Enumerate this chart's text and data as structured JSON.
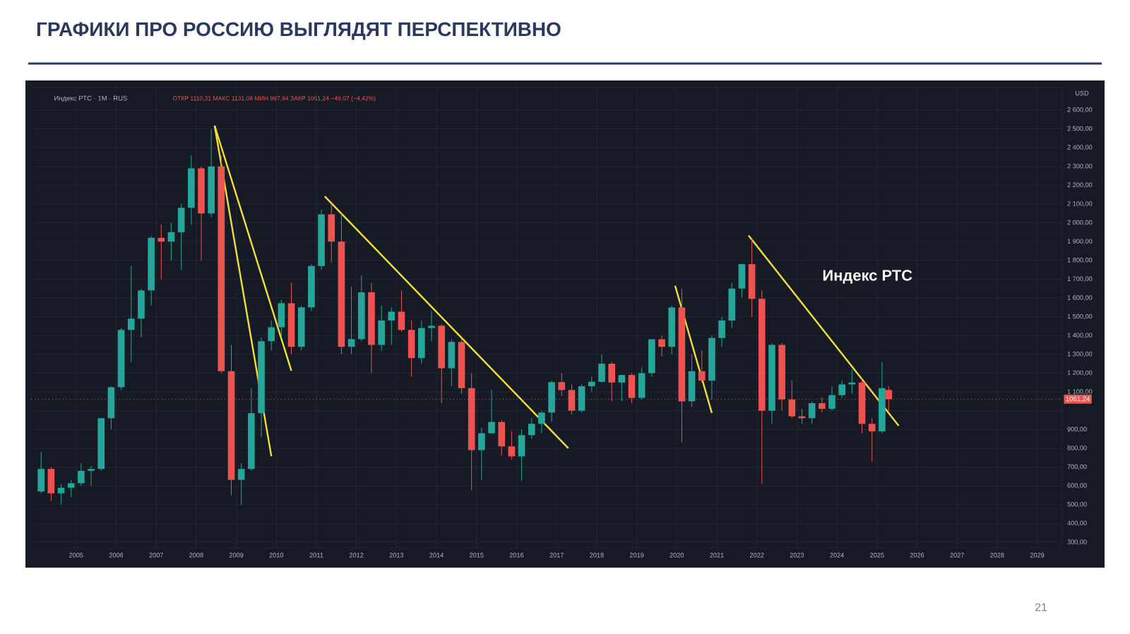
{
  "chart_data": {
    "type": "candlestick",
    "title": "ГРАФИКИ ПРО РОССИЮ ВЫГЛЯДЯТ ПЕРСПЕКТИВНО",
    "annotations": [
      "Индекс РТС · 1М · RUS",
      "ОТКР 1110,31 МАКС 1131,08 МИН 997,94 ЗАКР 1061,24 −49,07 (−4,42%)",
      "Индекс РТС",
      "21",
      "USD"
    ],
    "x": [
      "2004-02",
      "2004-05",
      "2004-08",
      "2004-11",
      "2005-02",
      "2005-05",
      "2005-08",
      "2005-11",
      "2006-02",
      "2006-05",
      "2006-08",
      "2006-11",
      "2007-02",
      "2007-05",
      "2007-08",
      "2007-11",
      "2008-02",
      "2008-05",
      "2008-08",
      "2008-11",
      "2009-02",
      "2009-05",
      "2009-08",
      "2009-11",
      "2010-02",
      "2010-05",
      "2010-08",
      "2010-11",
      "2011-02",
      "2011-05",
      "2011-08",
      "2011-11",
      "2012-02",
      "2012-05",
      "2012-08",
      "2012-11",
      "2013-02",
      "2013-05",
      "2013-08",
      "2013-11",
      "2014-02",
      "2014-05",
      "2014-08",
      "2014-11",
      "2015-02",
      "2015-05",
      "2015-08",
      "2015-11",
      "2016-02",
      "2016-05",
      "2016-08",
      "2016-11",
      "2017-02",
      "2017-05",
      "2017-08",
      "2017-11",
      "2018-02",
      "2018-05",
      "2018-08",
      "2018-11",
      "2019-02",
      "2019-05",
      "2019-08",
      "2019-11",
      "2020-02",
      "2020-05",
      "2020-08",
      "2020-11",
      "2021-02",
      "2021-05",
      "2021-08",
      "2021-11",
      "2022-02",
      "2022-05",
      "2022-08",
      "2022-11",
      "2023-02",
      "2023-05",
      "2023-08",
      "2023-11",
      "2024-02",
      "2024-05",
      "2024-08",
      "2024-11",
      "2025-02",
      "2025-04"
    ],
    "ohlc": [
      [
        570,
        780,
        560,
        690
      ],
      [
        690,
        700,
        520,
        560
      ],
      [
        560,
        610,
        500,
        590
      ],
      [
        590,
        630,
        540,
        614
      ],
      [
        614,
        720,
        600,
        680
      ],
      [
        680,
        705,
        600,
        690
      ],
      [
        690,
        960,
        680,
        960
      ],
      [
        960,
        1130,
        900,
        1125
      ],
      [
        1125,
        1440,
        1110,
        1430
      ],
      [
        1430,
        1770,
        1260,
        1490
      ],
      [
        1490,
        1650,
        1390,
        1640
      ],
      [
        1640,
        1930,
        1560,
        1920
      ],
      [
        1920,
        1990,
        1700,
        1900
      ],
      [
        1900,
        2000,
        1800,
        1950
      ],
      [
        1950,
        2100,
        1750,
        2080
      ],
      [
        2080,
        2360,
        1990,
        2290
      ],
      [
        2290,
        2300,
        1800,
        2050
      ],
      [
        2050,
        2498,
        2030,
        2300
      ],
      [
        2300,
        2360,
        1200,
        1210
      ],
      [
        1210,
        1350,
        550,
        632
      ],
      [
        632,
        720,
        498,
        690
      ],
      [
        690,
        1120,
        680,
        987
      ],
      [
        987,
        1390,
        860,
        1370
      ],
      [
        1370,
        1480,
        1320,
        1444
      ],
      [
        1444,
        1590,
        1400,
        1572
      ],
      [
        1572,
        1680,
        1300,
        1340
      ],
      [
        1340,
        1560,
        1320,
        1550
      ],
      [
        1550,
        1780,
        1530,
        1770
      ],
      [
        1770,
        2070,
        1750,
        2045
      ],
      [
        2045,
        2100,
        1790,
        1900
      ],
      [
        1900,
        2050,
        1300,
        1340
      ],
      [
        1340,
        1660,
        1300,
        1381
      ],
      [
        1381,
        1720,
        1370,
        1630
      ],
      [
        1630,
        1680,
        1200,
        1350
      ],
      [
        1350,
        1560,
        1320,
        1480
      ],
      [
        1480,
        1550,
        1350,
        1527
      ],
      [
        1527,
        1640,
        1420,
        1430
      ],
      [
        1430,
        1480,
        1180,
        1280
      ],
      [
        1280,
        1480,
        1250,
        1440
      ],
      [
        1440,
        1530,
        1370,
        1452
      ],
      [
        1452,
        1460,
        1040,
        1226
      ],
      [
        1226,
        1380,
        1130,
        1366
      ],
      [
        1366,
        1380,
        1090,
        1120
      ],
      [
        1120,
        1200,
        578,
        790
      ],
      [
        790,
        910,
        630,
        880
      ],
      [
        880,
        1110,
        880,
        940
      ],
      [
        940,
        950,
        760,
        810
      ],
      [
        810,
        890,
        740,
        757
      ],
      [
        757,
        900,
        628,
        870
      ],
      [
        870,
        960,
        850,
        930
      ],
      [
        930,
        1000,
        880,
        990
      ],
      [
        990,
        1160,
        940,
        1152
      ],
      [
        1152,
        1200,
        1080,
        1110
      ],
      [
        1110,
        1140,
        980,
        1000
      ],
      [
        1000,
        1140,
        990,
        1130
      ],
      [
        1130,
        1180,
        1100,
        1154
      ],
      [
        1154,
        1300,
        1150,
        1250
      ],
      [
        1250,
        1260,
        1050,
        1150
      ],
      [
        1150,
        1190,
        1050,
        1190
      ],
      [
        1190,
        1200,
        1040,
        1068
      ],
      [
        1068,
        1230,
        1060,
        1200
      ],
      [
        1200,
        1380,
        1180,
        1380
      ],
      [
        1380,
        1400,
        1290,
        1340
      ],
      [
        1340,
        1560,
        1300,
        1549
      ],
      [
        1549,
        1650,
        832,
        1050
      ],
      [
        1050,
        1300,
        1020,
        1210
      ],
      [
        1210,
        1320,
        1150,
        1160
      ],
      [
        1160,
        1400,
        1060,
        1387
      ],
      [
        1387,
        1500,
        1340,
        1480
      ],
      [
        1480,
        1680,
        1440,
        1650
      ],
      [
        1650,
        1780,
        1600,
        1780
      ],
      [
        1780,
        1920,
        1500,
        1595
      ],
      [
        1595,
        1640,
        612,
        1000
      ],
      [
        1000,
        1360,
        930,
        1350
      ],
      [
        1350,
        1360,
        1000,
        1060
      ],
      [
        1060,
        1160,
        960,
        970
      ],
      [
        970,
        1010,
        930,
        960
      ],
      [
        960,
        1050,
        930,
        1040
      ],
      [
        1040,
        1070,
        990,
        1010
      ],
      [
        1010,
        1130,
        1000,
        1083
      ],
      [
        1083,
        1160,
        1070,
        1140
      ],
      [
        1140,
        1220,
        1090,
        1150
      ],
      [
        1150,
        1170,
        880,
        930
      ],
      [
        930,
        960,
        730,
        890
      ],
      [
        890,
        1260,
        880,
        1120
      ],
      [
        1110.31,
        1131.08,
        997.94,
        1061.24
      ]
    ],
    "series": [
      {
        "type": "line",
        "color": "#f2e03a",
        "x": [
          "2008-06",
          "2009-11"
        ],
        "values": [
          2517,
          758
        ]
      },
      {
        "type": "line",
        "color": "#f2e03a",
        "x": [
          "2008-06",
          "2010-05"
        ],
        "values": [
          2517,
          1213
        ]
      },
      {
        "type": "line",
        "color": "#f2e03a",
        "x": [
          "2011-03",
          "2017-04"
        ],
        "values": [
          2141,
          800
        ]
      },
      {
        "type": "line",
        "color": "#f2e03a",
        "x": [
          "2019-12",
          "2020-11"
        ],
        "values": [
          1665,
          988
        ]
      },
      {
        "type": "line",
        "color": "#f2e03a",
        "x": [
          "2021-10",
          "2025-07"
        ],
        "values": [
          1933,
          920
        ]
      }
    ],
    "ref_lines": [
      {
        "axis": "y",
        "value": 1061.24,
        "label": "1061,24",
        "color": "#ef5350",
        "line_style": "dotted"
      }
    ],
    "xlim": [
      "2003-11",
      "2029-08"
    ],
    "xticks": [
      "2005",
      "2006",
      "2007",
      "2008",
      "2009",
      "2010",
      "2011",
      "2012",
      "2013",
      "2014",
      "2015",
      "2016",
      "2017",
      "2018",
      "2019",
      "2020",
      "2021",
      "2022",
      "2023",
      "2024",
      "2025",
      "2026",
      "2027",
      "2028",
      "2029"
    ],
    "ylim": [
      270,
      2720
    ],
    "yticks": [
      {
        "value": 300,
        "label": "300,00"
      },
      {
        "value": 400,
        "label": "400,00"
      },
      {
        "value": 500,
        "label": "500,00"
      },
      {
        "value": 600,
        "label": "600,00"
      },
      {
        "value": 700,
        "label": "700,00"
      },
      {
        "value": 800,
        "label": "800,00"
      },
      {
        "value": 900,
        "label": "900,00"
      },
      {
        "value": 1000,
        "label": null
      },
      {
        "value": 1100,
        "label": "1 100,00"
      },
      {
        "value": 1200,
        "label": "1 200,00"
      },
      {
        "value": 1300,
        "label": "1 300,00"
      },
      {
        "value": 1400,
        "label": "1 400,00"
      },
      {
        "value": 1500,
        "label": "1 500,00"
      },
      {
        "value": 1600,
        "label": "1 600,00"
      },
      {
        "value": 1700,
        "label": "1 700,00"
      },
      {
        "value": 1800,
        "label": "1 800,00"
      },
      {
        "value": 1900,
        "label": "1 900,00"
      },
      {
        "value": 2000,
        "label": "2 000,00"
      },
      {
        "value": 2100,
        "label": "2 100,00"
      },
      {
        "value": 2200,
        "label": "2 200,00"
      },
      {
        "value": 2300,
        "label": "2 300,00"
      },
      {
        "value": 2400,
        "label": "2 400,00"
      },
      {
        "value": 2500,
        "label": "2 500,00"
      },
      {
        "value": 2600,
        "label": "2 600,00"
      }
    ],
    "grid": true
  }
}
